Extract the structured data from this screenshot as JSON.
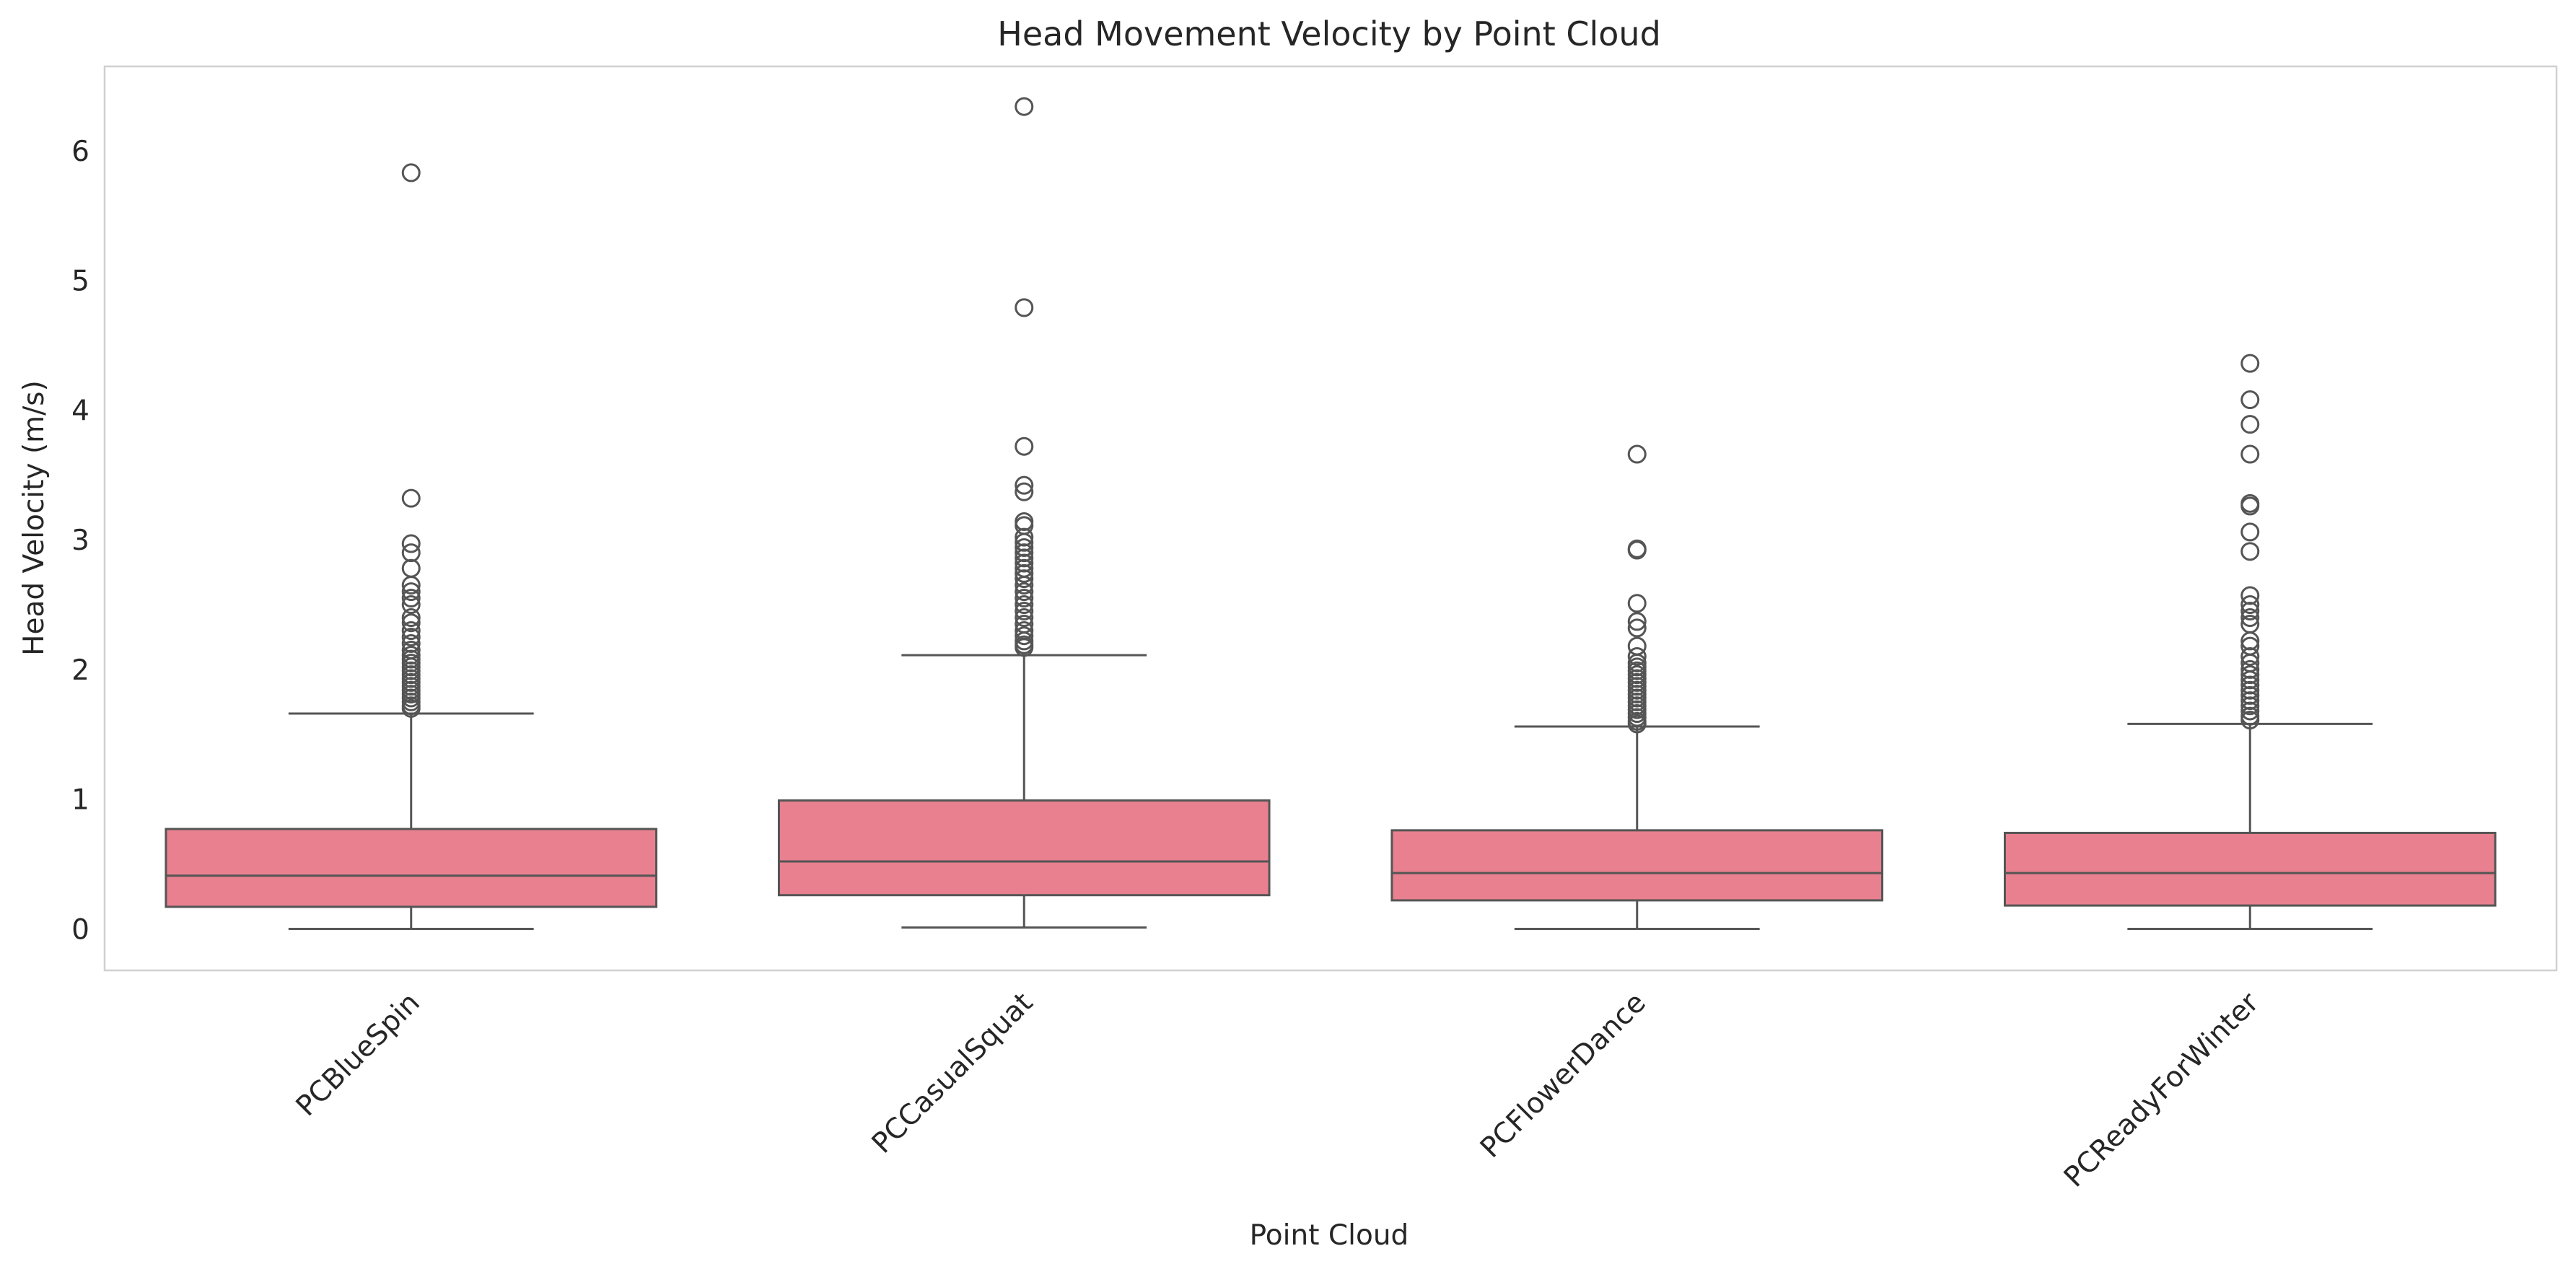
{
  "chart_data": {
    "type": "box",
    "title": "Head Movement Velocity by Point Cloud",
    "xlabel": "Point Cloud",
    "ylabel": "Head Velocity (m/s)",
    "ylim": [
      -0.32,
      6.65
    ],
    "yticks": [
      0,
      1,
      2,
      3,
      4,
      5,
      6
    ],
    "grid": false,
    "box_color": "#e8808f",
    "line_color": "#555555",
    "categories": [
      "PCBlueSpin",
      "PCCasualSquat",
      "PCFlowerDance",
      "PCReadyForWinter"
    ],
    "boxes": [
      {
        "name": "PCBlueSpin",
        "whisker_low": 0.0,
        "q1": 0.17,
        "median": 0.41,
        "q3": 0.77,
        "whisker_high": 1.66,
        "outliers": [
          5.83,
          3.32,
          2.97,
          2.9,
          2.78,
          2.65,
          2.6,
          2.55,
          2.5,
          2.4,
          2.36,
          2.3,
          2.25,
          2.2,
          2.15,
          2.11,
          2.08,
          2.05,
          2.02,
          1.99,
          1.96,
          1.93,
          1.9,
          1.87,
          1.84,
          1.81,
          1.78,
          1.75,
          1.72,
          1.7
        ]
      },
      {
        "name": "PCCasualSquat",
        "whisker_low": 0.01,
        "q1": 0.26,
        "median": 0.52,
        "q3": 0.99,
        "whisker_high": 2.11,
        "outliers": [
          6.34,
          4.79,
          3.72,
          3.42,
          3.37,
          3.14,
          3.11,
          3.02,
          2.98,
          2.94,
          2.9,
          2.86,
          2.82,
          2.78,
          2.74,
          2.7,
          2.65,
          2.6,
          2.55,
          2.5,
          2.45,
          2.4,
          2.35,
          2.3,
          2.26,
          2.22,
          2.19,
          2.17
        ]
      },
      {
        "name": "PCFlowerDance",
        "whisker_low": 0.0,
        "q1": 0.22,
        "median": 0.43,
        "q3": 0.76,
        "whisker_high": 1.56,
        "outliers": [
          3.66,
          2.93,
          2.92,
          2.51,
          2.37,
          2.32,
          2.18,
          2.1,
          2.05,
          2.02,
          1.99,
          1.96,
          1.93,
          1.9,
          1.87,
          1.84,
          1.81,
          1.78,
          1.75,
          1.72,
          1.69,
          1.66,
          1.63,
          1.6,
          1.58
        ]
      },
      {
        "name": "PCReadyForWinter",
        "whisker_low": 0.0,
        "q1": 0.18,
        "median": 0.43,
        "q3": 0.74,
        "whisker_high": 1.58,
        "outliers": [
          4.36,
          4.08,
          3.89,
          3.66,
          3.28,
          3.26,
          3.06,
          2.91,
          2.57,
          2.5,
          2.45,
          2.4,
          2.35,
          2.22,
          2.18,
          2.1,
          2.05,
          2.0,
          1.96,
          1.92,
          1.88,
          1.84,
          1.8,
          1.76,
          1.72,
          1.68,
          1.64,
          1.61
        ]
      }
    ]
  }
}
